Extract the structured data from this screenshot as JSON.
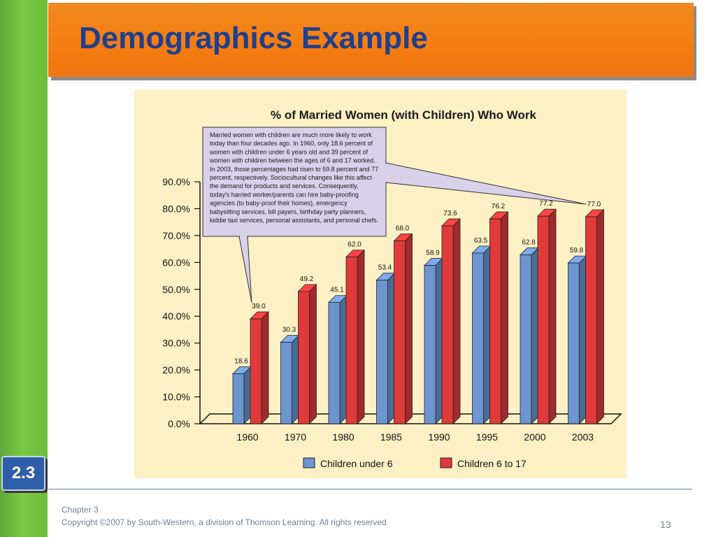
{
  "slide": {
    "title": "Demographics Example",
    "section": "2.3",
    "footer": {
      "chapter": "Chapter 3",
      "copyright": "Copyright ©2007 by South-Western, a division of Thomson Learning.  All rights reserved",
      "page": "13"
    }
  },
  "colors": {
    "left_bar": "#7ac943",
    "banner": "#f57c10",
    "title": "#1f3f8f",
    "panel": "#fdf0c4",
    "series_under6": "#6d95cf",
    "series_6to17": "#e03a3a",
    "callout": "#d9d0ea"
  },
  "chart_data": {
    "type": "bar",
    "title": "% of Married Women (with Children) Who Work",
    "categories": [
      "1960",
      "1970",
      "1980",
      "1985",
      "1990",
      "1995",
      "2000",
      "2003"
    ],
    "series": [
      {
        "name": "Children under 6",
        "values": [
          18.6,
          30.3,
          45.1,
          53.4,
          58.9,
          63.5,
          62.8,
          59.8
        ]
      },
      {
        "name": "Children 6 to 17",
        "values": [
          39.0,
          49.2,
          62.0,
          68.0,
          73.6,
          76.2,
          77.2,
          77.0
        ]
      }
    ],
    "ylim": [
      0,
      90
    ],
    "yticks": [
      "0.0%",
      "10.0%",
      "20.0%",
      "30.0%",
      "40.0%",
      "50.0%",
      "60.0%",
      "70.0%",
      "80.0%",
      "90.0%"
    ],
    "xlabel": "",
    "ylabel": "",
    "legend_position": "bottom",
    "style": "3d",
    "annotation": "Married women with children are much more likely to work today than four decades ago. In 1960, only 18.6 percent of women with children under 6 years old and 39 percent of women with children between the ages of 6 and 17 worked. In 2003, those percentages had risen to 59.8 percent and 77 percent, respectively. Sociocultural changes like this affect the demand for products and services. Consequently, today's harried worker/parents can hire baby-proofing agencies (to baby-proof their homes), emergency babysitting services, bill payers, birthday party planners, kiddie taxi services, personal assistants, and personal chefs."
  }
}
